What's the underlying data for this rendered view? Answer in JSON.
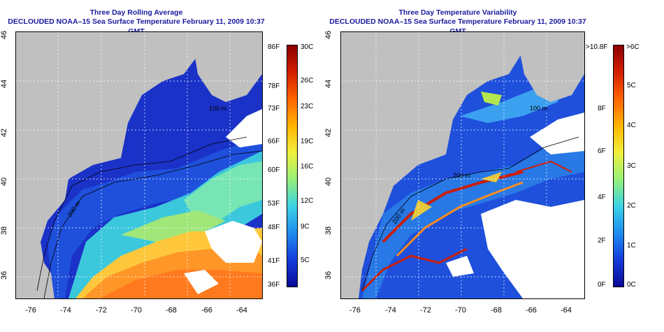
{
  "left_panel": {
    "title_line1": "Three Day Rolling Average",
    "title_line2": "DECLOUDED NOAA–15 Sea Surface Temperature February 11, 2009 10:37 GMT",
    "contour_label_1": "200 m",
    "contour_label_2": "100 m",
    "colorbar_left_labels": [
      "86F",
      "78F",
      "73F",
      "66F",
      "60F",
      "53F",
      "48F",
      "41F",
      "36F"
    ],
    "colorbar_right_labels": [
      "30C",
      "26C",
      "23C",
      "19C",
      "16C",
      "12C",
      "9C",
      "5C"
    ]
  },
  "right_panel": {
    "title_line1": "Three Day Temperature Variability",
    "title_line2": "DECLOUDED NOAA–15 Sea Surface Temperature February 11, 2009 10:37 GMT",
    "contour_label_1": "200 m",
    "contour_label_2": "100 m",
    "contour_label_3": "200 m",
    "colorbar_left_labels": [
      ">10.8F",
      "8F",
      "6F",
      "4F",
      "2F",
      "0F"
    ],
    "colorbar_right_labels": [
      ">6C",
      "5C",
      "4C",
      "3C",
      "2C",
      "1C",
      "0C"
    ]
  },
  "axes": {
    "x_ticks": [
      "-76",
      "-74",
      "-72",
      "-70",
      "-68",
      "-66",
      "-64"
    ],
    "y_ticks": [
      "46",
      "44",
      "42",
      "40",
      "38",
      "36"
    ]
  },
  "colors": {
    "title": "#1a1a9e",
    "land": "#c0c0c0",
    "deep_blue": "#1428b4",
    "warm": "#ffa020"
  }
}
